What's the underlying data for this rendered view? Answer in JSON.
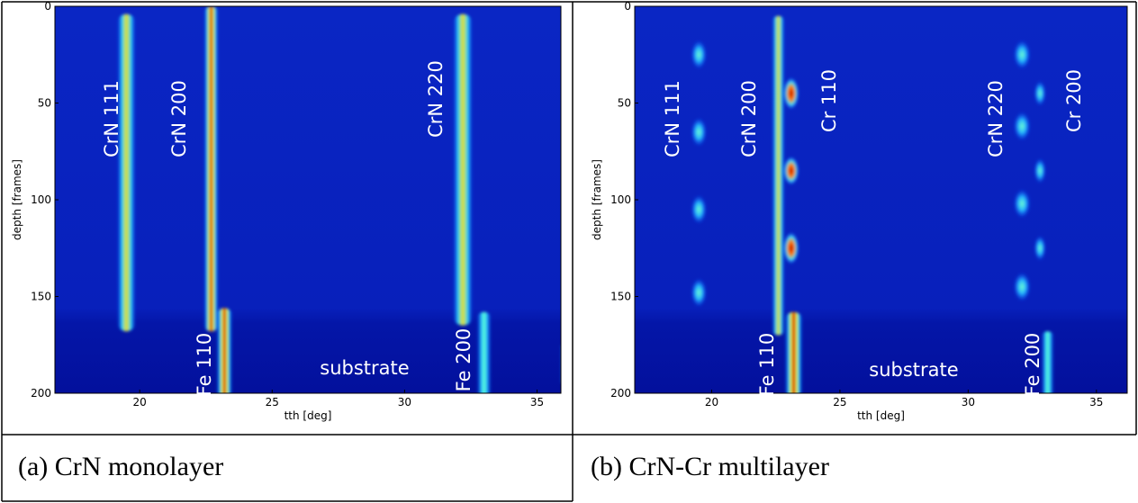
{
  "chart_data": [
    {
      "type": "heatmap",
      "xlabel": "tth [deg]",
      "ylabel": "depth [frames]",
      "xlim": [
        16.8,
        35.9
      ],
      "ylim": [
        0,
        200
      ],
      "y_inverted": true,
      "xticks": [
        20,
        25,
        30,
        35
      ],
      "yticks": [
        0,
        50,
        100,
        150,
        200
      ],
      "annotations": [
        "CrN 111",
        "CrN 200",
        "CrN 220",
        "Fe 110",
        "Fe 200",
        "substrate"
      ]
    },
    {
      "type": "heatmap",
      "xlabel": "tth [deg]",
      "ylabel": "depth [frames]",
      "xlim": [
        17,
        36.2
      ],
      "ylim": [
        0,
        200
      ],
      "y_inverted": true,
      "xticks": [
        20,
        25,
        30,
        35
      ],
      "yticks": [
        0,
        50,
        100,
        150,
        200
      ],
      "annotations": [
        "CrN 111",
        "CrN 200",
        "Cr 110",
        "CrN 220",
        "Cr 200",
        "Fe 110",
        "Fe 200",
        "substrate"
      ]
    }
  ],
  "captions": [
    "(a) CrN monolayer",
    "(b) CrN-Cr multilayer"
  ]
}
